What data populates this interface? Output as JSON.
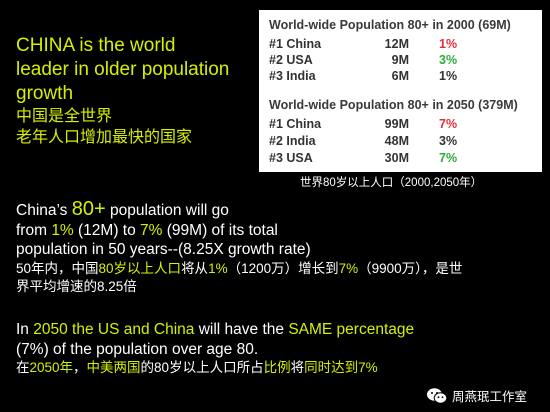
{
  "headline": {
    "line1": "CHINA is the world",
    "line2": "leader in older population",
    "line3": "growth",
    "zh1": "中国是全世界",
    "zh2": "老年人口增加最快的国家"
  },
  "table_2000": {
    "title": "World-wide Population 80+ in 2000 (69M)",
    "rows": [
      {
        "rank_country": "#1 China",
        "count": "12M",
        "pct": "1%",
        "pct_color": "#e0303a"
      },
      {
        "rank_country": "#2 USA",
        "count": "9M",
        "pct": "3%",
        "pct_color": "#2eaa3c"
      },
      {
        "rank_country": "#3 India",
        "count": "6M",
        "pct": "1%",
        "pct_color": "#333333"
      }
    ]
  },
  "table_2050": {
    "title": "World-wide Population 80+ in 2050 (379M)",
    "rows": [
      {
        "rank_country": "#1 China",
        "count": "99M",
        "pct": "7%",
        "pct_color": "#e0303a"
      },
      {
        "rank_country": "#2 India",
        "count": "48M",
        "pct": "3%",
        "pct_color": "#333333"
      },
      {
        "rank_country": "#3 USA",
        "count": "30M",
        "pct": "7%",
        "pct_color": "#2eaa3c"
      }
    ]
  },
  "caption": "世界80岁以上人口（2000,2050年）",
  "para1": {
    "l1a": "China’s ",
    "l1b": "80+",
    "l1c": " population will go",
    "l2a": "from ",
    "l2b": "1%",
    "l2c": " (12M) to ",
    "l2d": "7%",
    "l2e": " (99M) of its total",
    "l3": "population in 50 years--(8.25X growth rate)",
    "zh1a": "50年内，中国",
    "zh1b": "80岁以上人口",
    "zh1c": "将从",
    "zh1d": "1%",
    "zh1e": "（1200万）增长到",
    "zh1f": "7%",
    "zh1g": "（9900万），是世",
    "zh2": "界平均增速的8.25倍"
  },
  "para2": {
    "l1a": "In ",
    "l1b": "2050 the US and China",
    "l1c": " will have the ",
    "l1d": "SAME percentage",
    "l2": "(7%) of the population  over age 80.",
    "zh1a": "在",
    "zh1b": "2050年",
    "zh1c": "，",
    "zh1d": "中美两国",
    "zh1e": "的80岁以上人口所占",
    "zh1f": "比例",
    "zh1g": "将",
    "zh1h": "同时达到7%"
  },
  "watermark": {
    "icon": "wechat-icon",
    "text": "周燕珉工作室"
  }
}
